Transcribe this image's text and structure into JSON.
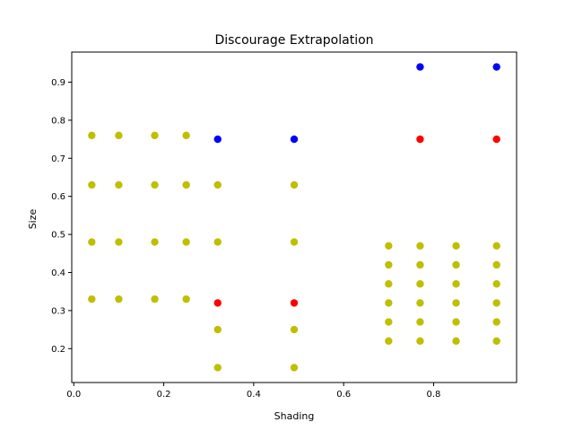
{
  "chart_data": {
    "type": "scatter",
    "title": "Discourage Extrapolation",
    "xlabel": "Shading",
    "ylabel": "Size",
    "xlim": [
      -0.0045,
      0.9845
    ],
    "ylim": [
      0.111,
      0.979
    ],
    "xticks": [
      "0.0",
      "0.2",
      "0.4",
      "0.6",
      "0.8"
    ],
    "xtick_values": [
      0.0,
      0.2,
      0.4,
      0.6,
      0.8
    ],
    "yticks": [
      "0.2",
      "0.3",
      "0.4",
      "0.5",
      "0.6",
      "0.7",
      "0.8",
      "0.9"
    ],
    "ytick_values": [
      0.2,
      0.3,
      0.4,
      0.5,
      0.6,
      0.7,
      0.8,
      0.9
    ],
    "grid": false,
    "series": [
      {
        "color": "#bfbf00",
        "points": [
          [
            0.04,
            0.76
          ],
          [
            0.1,
            0.76
          ],
          [
            0.18,
            0.76
          ],
          [
            0.25,
            0.76
          ],
          [
            0.04,
            0.63
          ],
          [
            0.1,
            0.63
          ],
          [
            0.18,
            0.63
          ],
          [
            0.25,
            0.63
          ],
          [
            0.32,
            0.63
          ],
          [
            0.49,
            0.63
          ],
          [
            0.04,
            0.48
          ],
          [
            0.1,
            0.48
          ],
          [
            0.18,
            0.48
          ],
          [
            0.25,
            0.48
          ],
          [
            0.32,
            0.48
          ],
          [
            0.49,
            0.48
          ],
          [
            0.04,
            0.33
          ],
          [
            0.1,
            0.33
          ],
          [
            0.18,
            0.33
          ],
          [
            0.25,
            0.33
          ],
          [
            0.32,
            0.25
          ],
          [
            0.49,
            0.25
          ],
          [
            0.32,
            0.15
          ],
          [
            0.49,
            0.15
          ],
          [
            0.7,
            0.47
          ],
          [
            0.77,
            0.47
          ],
          [
            0.85,
            0.47
          ],
          [
            0.94,
            0.47
          ],
          [
            0.7,
            0.42
          ],
          [
            0.77,
            0.42
          ],
          [
            0.85,
            0.42
          ],
          [
            0.94,
            0.42
          ],
          [
            0.7,
            0.37
          ],
          [
            0.77,
            0.37
          ],
          [
            0.85,
            0.37
          ],
          [
            0.94,
            0.37
          ],
          [
            0.7,
            0.32
          ],
          [
            0.77,
            0.32
          ],
          [
            0.85,
            0.32
          ],
          [
            0.94,
            0.32
          ],
          [
            0.7,
            0.27
          ],
          [
            0.77,
            0.27
          ],
          [
            0.85,
            0.27
          ],
          [
            0.94,
            0.27
          ],
          [
            0.7,
            0.22
          ],
          [
            0.77,
            0.22
          ],
          [
            0.85,
            0.22
          ],
          [
            0.94,
            0.22
          ]
        ]
      },
      {
        "color": "#ff0000",
        "points": [
          [
            0.32,
            0.32
          ],
          [
            0.49,
            0.32
          ],
          [
            0.77,
            0.75
          ],
          [
            0.94,
            0.75
          ]
        ]
      },
      {
        "color": "#0000ff",
        "points": [
          [
            0.32,
            0.75
          ],
          [
            0.49,
            0.75
          ],
          [
            0.77,
            0.94
          ],
          [
            0.94,
            0.94
          ]
        ]
      }
    ]
  }
}
